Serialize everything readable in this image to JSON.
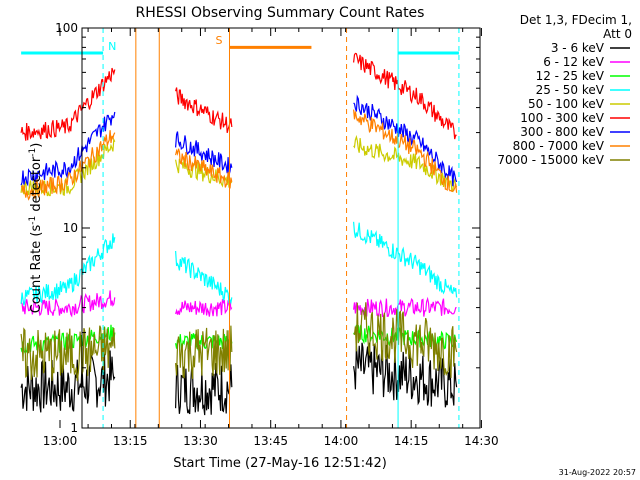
{
  "chart_data": {
    "type": "line",
    "title": "RHESSI Observing Summary Count Rates",
    "xlabel": "Start Time (27-May-16 12:51:42)",
    "ylabel_main": "Count Rate (s",
    "ylabel_sup1": "-1",
    "ylabel_mid": " detector",
    "ylabel_sup2": "-1",
    "ylabel_end": ")",
    "y_scale": "log",
    "ylim": [
      1,
      100
    ],
    "y_ticks": [
      1,
      10,
      100
    ],
    "y_tick_labels": [
      "1",
      "10",
      "100"
    ],
    "x_ticks": [
      "13:00",
      "13:15",
      "13:30",
      "13:45",
      "14:00",
      "14:15",
      "14:30"
    ],
    "x_minutes": [
      13.0,
      98.0
    ],
    "legend_header": [
      "Det 1,3, FDecim 1,",
      "Att 0"
    ],
    "footer": "31-Aug-2022 20:57",
    "series": [
      {
        "name": "3 - 6 keV",
        "color": "#000000",
        "segments": [
          [
            [
              0,
              1.6
            ],
            [
              10,
              1.6
            ],
            [
              20,
              1.8
            ]
          ],
          [
            [
              33,
              1.6
            ],
            [
              45,
              1.6
            ]
          ],
          [
            [
              71,
              2.0
            ],
            [
              85,
              1.8
            ],
            [
              93,
              1.6
            ]
          ]
        ]
      },
      {
        "name": "6 - 12 keV",
        "color": "#ff00ff",
        "segments": [
          [
            [
              0,
              4.0
            ],
            [
              10,
              4.0
            ],
            [
              20,
              4.5
            ]
          ],
          [
            [
              33,
              4.0
            ],
            [
              45,
              4.0
            ]
          ],
          [
            [
              71,
              4.0
            ],
            [
              85,
              4.0
            ],
            [
              93,
              4.0
            ]
          ]
        ]
      },
      {
        "name": "12 - 25 keV",
        "color": "#00ff00",
        "segments": [
          [
            [
              0,
              2.6
            ],
            [
              10,
              2.7
            ],
            [
              20,
              3.0
            ]
          ],
          [
            [
              33,
              2.7
            ],
            [
              45,
              2.7
            ]
          ],
          [
            [
              71,
              3.0
            ],
            [
              85,
              2.8
            ],
            [
              93,
              2.7
            ]
          ]
        ]
      },
      {
        "name": "25 - 50 keV",
        "color": "#00ffff",
        "segments": [
          [
            [
              0,
              4.5
            ],
            [
              10,
              5.0
            ],
            [
              20,
              9.0
            ]
          ],
          [
            [
              33,
              7.0
            ],
            [
              45,
              4.5
            ]
          ],
          [
            [
              71,
              10.0
            ],
            [
              85,
              6.5
            ],
            [
              93,
              4.5
            ]
          ]
        ]
      },
      {
        "name": "50 - 100 keV",
        "color": "#cccc00",
        "segments": [
          [
            [
              0,
              16
            ],
            [
              10,
              16
            ],
            [
              20,
              27
            ]
          ],
          [
            [
              33,
              21
            ],
            [
              45,
              17
            ]
          ],
          [
            [
              71,
              26
            ],
            [
              85,
              21
            ],
            [
              93,
              16
            ]
          ]
        ]
      },
      {
        "name": "100 - 300 keV",
        "color": "#ff0000",
        "segments": [
          [
            [
              0,
              30
            ],
            [
              10,
              32
            ],
            [
              20,
              62
            ]
          ],
          [
            [
              33,
              46
            ],
            [
              45,
              32
            ]
          ],
          [
            [
              71,
              70
            ],
            [
              85,
              45
            ],
            [
              93,
              29
            ]
          ]
        ]
      },
      {
        "name": "300 - 800 keV",
        "color": "#0000ff",
        "segments": [
          [
            [
              0,
              18
            ],
            [
              10,
              20
            ],
            [
              20,
              38
            ]
          ],
          [
            [
              33,
              28
            ],
            [
              45,
              20
            ]
          ],
          [
            [
              71,
              43
            ],
            [
              85,
              27
            ],
            [
              93,
              17
            ]
          ]
        ]
      },
      {
        "name": "800 - 7000 keV",
        "color": "#ff8000",
        "segments": [
          [
            [
              0,
              15
            ],
            [
              10,
              17
            ],
            [
              20,
              30
            ]
          ],
          [
            [
              33,
              23
            ],
            [
              45,
              17
            ]
          ],
          [
            [
              71,
              37
            ],
            [
              85,
              24
            ],
            [
              93,
              15
            ]
          ]
        ]
      },
      {
        "name": "7000 - 15000 keV",
        "color": "#808000",
        "segments": [
          [
            [
              0,
              2.3
            ],
            [
              10,
              2.3
            ],
            [
              20,
              2.5
            ]
          ],
          [
            [
              33,
              2.4
            ],
            [
              45,
              2.4
            ]
          ],
          [
            [
              71,
              3.2
            ],
            [
              85,
              2.7
            ],
            [
              93,
              2.4
            ]
          ]
        ]
      }
    ],
    "annotations": {
      "night": {
        "label": "N",
        "color": "#00ffff",
        "dashed_start": [
          17.5,
          93.5
        ],
        "solid_start": [
          80.5
        ],
        "bar_y": 75,
        "bars": [
          [
            0,
            17.5
          ],
          [
            80.5,
            93.5
          ]
        ]
      },
      "saa": {
        "label": "S",
        "color": "#ff8000",
        "solid_start": [
          44.5
        ],
        "dashed_end": [
          69.5
        ],
        "bar_y": 80,
        "bars": [
          [
            44.5,
            62
          ]
        ]
      },
      "data_edges": [
        24.5,
        29.5
      ]
    }
  }
}
